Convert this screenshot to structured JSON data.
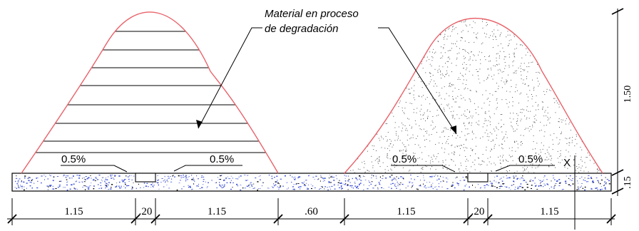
{
  "annotation": {
    "line1": "Material en proceso",
    "line2": "de degradación"
  },
  "slopes": {
    "left_a": "0.5%",
    "left_b": "0.5%",
    "right_a": "0.5%",
    "right_b": "0.5%"
  },
  "marker": "X",
  "dimensions": {
    "horizontal": [
      "1.15",
      ".20",
      "1.15",
      ".60",
      "1.15",
      ".20",
      "1.15"
    ],
    "height": "1.50",
    "base": ".15"
  },
  "colors": {
    "pile_outline": "#e8626a",
    "concrete_speckle": "#3b4fd6",
    "line": "#000000",
    "dots": "#555555"
  }
}
